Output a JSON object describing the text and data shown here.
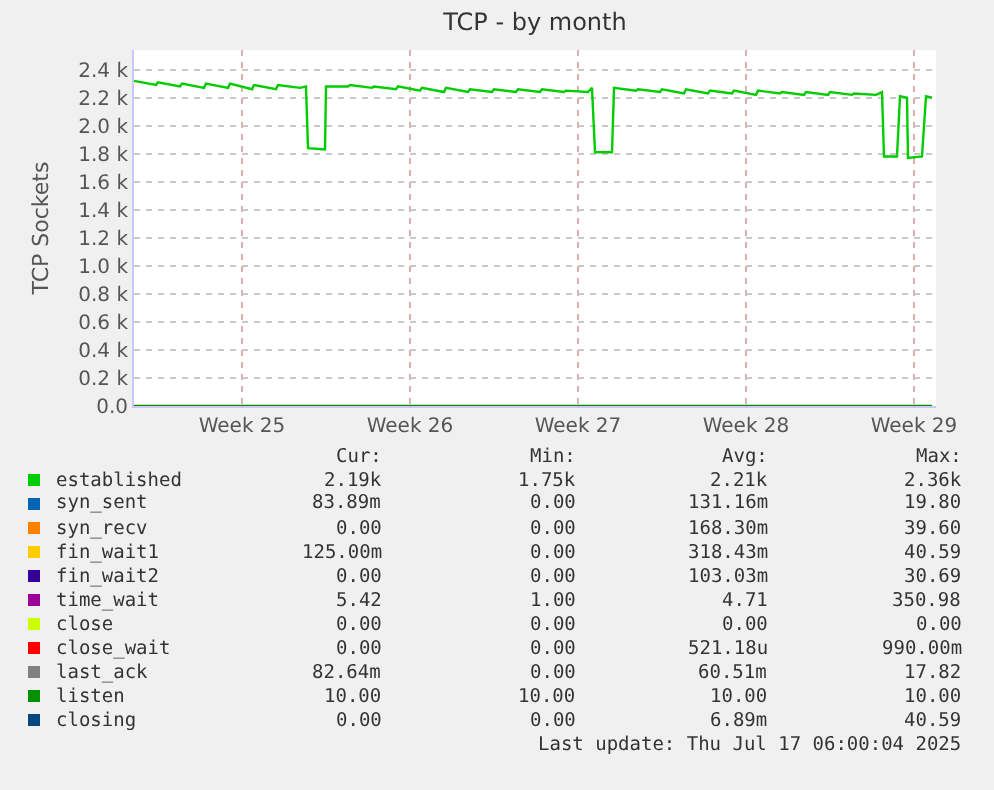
{
  "chart_data": {
    "type": "line",
    "title": "TCP - by month",
    "ylabel": "TCP Sockets",
    "xlim": [
      "2025-06-14T00:00",
      "2025-07-17T10:00"
    ],
    "xticks": [
      {
        "value": "2025-06-18T12:00",
        "label": "Week 25"
      },
      {
        "value": "2025-06-25T12:00",
        "label": "Week 26"
      },
      {
        "value": "2025-07-02T12:00",
        "label": "Week 27"
      },
      {
        "value": "2025-07-09T12:00",
        "label": "Week 28"
      },
      {
        "value": "2025-07-16T12:00",
        "label": "Week 29"
      }
    ],
    "ylim": [
      0,
      2540
    ],
    "yticks": [
      {
        "value": 0,
        "label": "0.0"
      },
      {
        "value": 200,
        "label": "0.2 k"
      },
      {
        "value": 400,
        "label": "0.4 k"
      },
      {
        "value": 600,
        "label": "0.6 k"
      },
      {
        "value": 800,
        "label": "0.8 k"
      },
      {
        "value": 1000,
        "label": "1.0 k"
      },
      {
        "value": 1200,
        "label": "1.2 k"
      },
      {
        "value": 1400,
        "label": "1.4 k"
      },
      {
        "value": 1600,
        "label": "1.6 k"
      },
      {
        "value": 1800,
        "label": "1.8 k"
      },
      {
        "value": 2000,
        "label": "2.0 k"
      },
      {
        "value": 2200,
        "label": "2.2 k"
      },
      {
        "value": 2400,
        "label": "2.4 k"
      }
    ],
    "grid": true,
    "legend": "bottom",
    "marker": "none",
    "line_style": "solid",
    "series": [
      {
        "name": "established",
        "color": "#00cc00",
        "x": [
          "2025-06-14T00:00",
          "2025-06-14T22:00",
          "2025-06-15T00:00",
          "2025-06-15T22:00",
          "2025-06-16T00:00",
          "2025-06-16T22:00",
          "2025-06-17T00:00",
          "2025-06-17T22:00",
          "2025-06-18T00:00",
          "2025-06-18T22:00",
          "2025-06-19T00:00",
          "2025-06-19T22:00",
          "2025-06-20T00:00",
          "2025-06-20T22:00",
          "2025-06-21T04:00",
          "2025-06-21T06:00",
          "2025-06-21T23:00",
          "2025-06-22T00:00",
          "2025-06-22T22:00",
          "2025-06-23T00:00",
          "2025-06-23T22:00",
          "2025-06-24T00:00",
          "2025-06-24T22:00",
          "2025-06-25T00:00",
          "2025-06-25T22:00",
          "2025-06-26T00:00",
          "2025-06-26T22:00",
          "2025-06-27T00:00",
          "2025-06-27T22:00",
          "2025-06-28T00:00",
          "2025-06-28T22:00",
          "2025-06-29T00:00",
          "2025-06-29T22:00",
          "2025-06-30T00:00",
          "2025-06-30T22:00",
          "2025-07-01T00:00",
          "2025-07-01T22:00",
          "2025-07-02T00:00",
          "2025-07-02T22:00",
          "2025-07-03T02:00",
          "2025-07-03T05:00",
          "2025-07-03T22:00",
          "2025-07-04T00:00",
          "2025-07-04T22:00",
          "2025-07-05T00:00",
          "2025-07-05T22:00",
          "2025-07-06T00:00",
          "2025-07-06T22:00",
          "2025-07-07T00:00",
          "2025-07-07T22:00",
          "2025-07-08T00:00",
          "2025-07-08T22:00",
          "2025-07-09T00:00",
          "2025-07-09T22:00",
          "2025-07-10T00:00",
          "2025-07-10T22:00",
          "2025-07-11T00:00",
          "2025-07-11T22:00",
          "2025-07-12T00:00",
          "2025-07-12T22:00",
          "2025-07-13T00:00",
          "2025-07-13T22:00",
          "2025-07-14T00:00",
          "2025-07-14T22:00",
          "2025-07-15T04:00",
          "2025-07-15T06:00",
          "2025-07-15T19:00",
          "2025-07-15T22:00",
          "2025-07-16T05:00",
          "2025-07-16T06:00",
          "2025-07-16T20:00",
          "2025-07-17T00:00",
          "2025-07-17T06:00"
        ],
        "values": [
          2320,
          2290,
          2310,
          2280,
          2300,
          2270,
          2300,
          2270,
          2300,
          2260,
          2290,
          2260,
          2290,
          2270,
          2280,
          1840,
          1830,
          2280,
          2280,
          2290,
          2270,
          2280,
          2260,
          2280,
          2250,
          2270,
          2240,
          2270,
          2240,
          2260,
          2240,
          2260,
          2240,
          2260,
          2240,
          2260,
          2240,
          2250,
          2240,
          2270,
          1810,
          1810,
          2270,
          2250,
          2260,
          2240,
          2260,
          2230,
          2260,
          2230,
          2250,
          2230,
          2250,
          2220,
          2250,
          2230,
          2240,
          2220,
          2240,
          2220,
          2240,
          2220,
          2230,
          2220,
          2240,
          1780,
          1780,
          2210,
          2200,
          1770,
          1780,
          2210,
          2200
        ]
      },
      {
        "name": "syn_sent",
        "color": "#0066b3"
      },
      {
        "name": "syn_recv",
        "color": "#ff8000"
      },
      {
        "name": "fin_wait1",
        "color": "#ffcc00"
      },
      {
        "name": "fin_wait2",
        "color": "#330099"
      },
      {
        "name": "time_wait",
        "color": "#990099"
      },
      {
        "name": "close",
        "color": "#ccff00"
      },
      {
        "name": "close_wait",
        "color": "#ff0000"
      },
      {
        "name": "last_ack",
        "color": "#808080"
      },
      {
        "name": "listen",
        "color": "#008f00",
        "x": [
          "2025-06-14T00:00",
          "2025-07-17T06:00"
        ],
        "values": [
          0,
          0
        ]
      },
      {
        "name": "closing",
        "color": "#00487d"
      }
    ],
    "annotations": [
      "Cur:",
      "Min:",
      "Avg:",
      "Max:",
      "2.19k",
      "1.75k",
      "2.21k",
      "2.36k",
      "83.89m",
      "0.00",
      "131.16m",
      "19.80",
      "0.00",
      "0.00",
      "168.30m",
      "39.60",
      "125.00m",
      "0.00",
      "318.43m",
      "40.59",
      "0.00",
      "0.00",
      "103.03m",
      "30.69",
      "5.42",
      "1.00",
      "4.71",
      "350.98",
      "0.00",
      "0.00",
      "0.00",
      "0.00",
      "0.00",
      "0.00",
      "521.18u",
      "990.00m",
      "82.64m",
      "0.00",
      "60.51m",
      "17.82",
      "10.00",
      "10.00",
      "10.00",
      "10.00",
      "0.00",
      "0.00",
      "6.89m",
      "40.59",
      "Last update: Thu Jul 17 06:00:04 2025"
    ]
  }
}
